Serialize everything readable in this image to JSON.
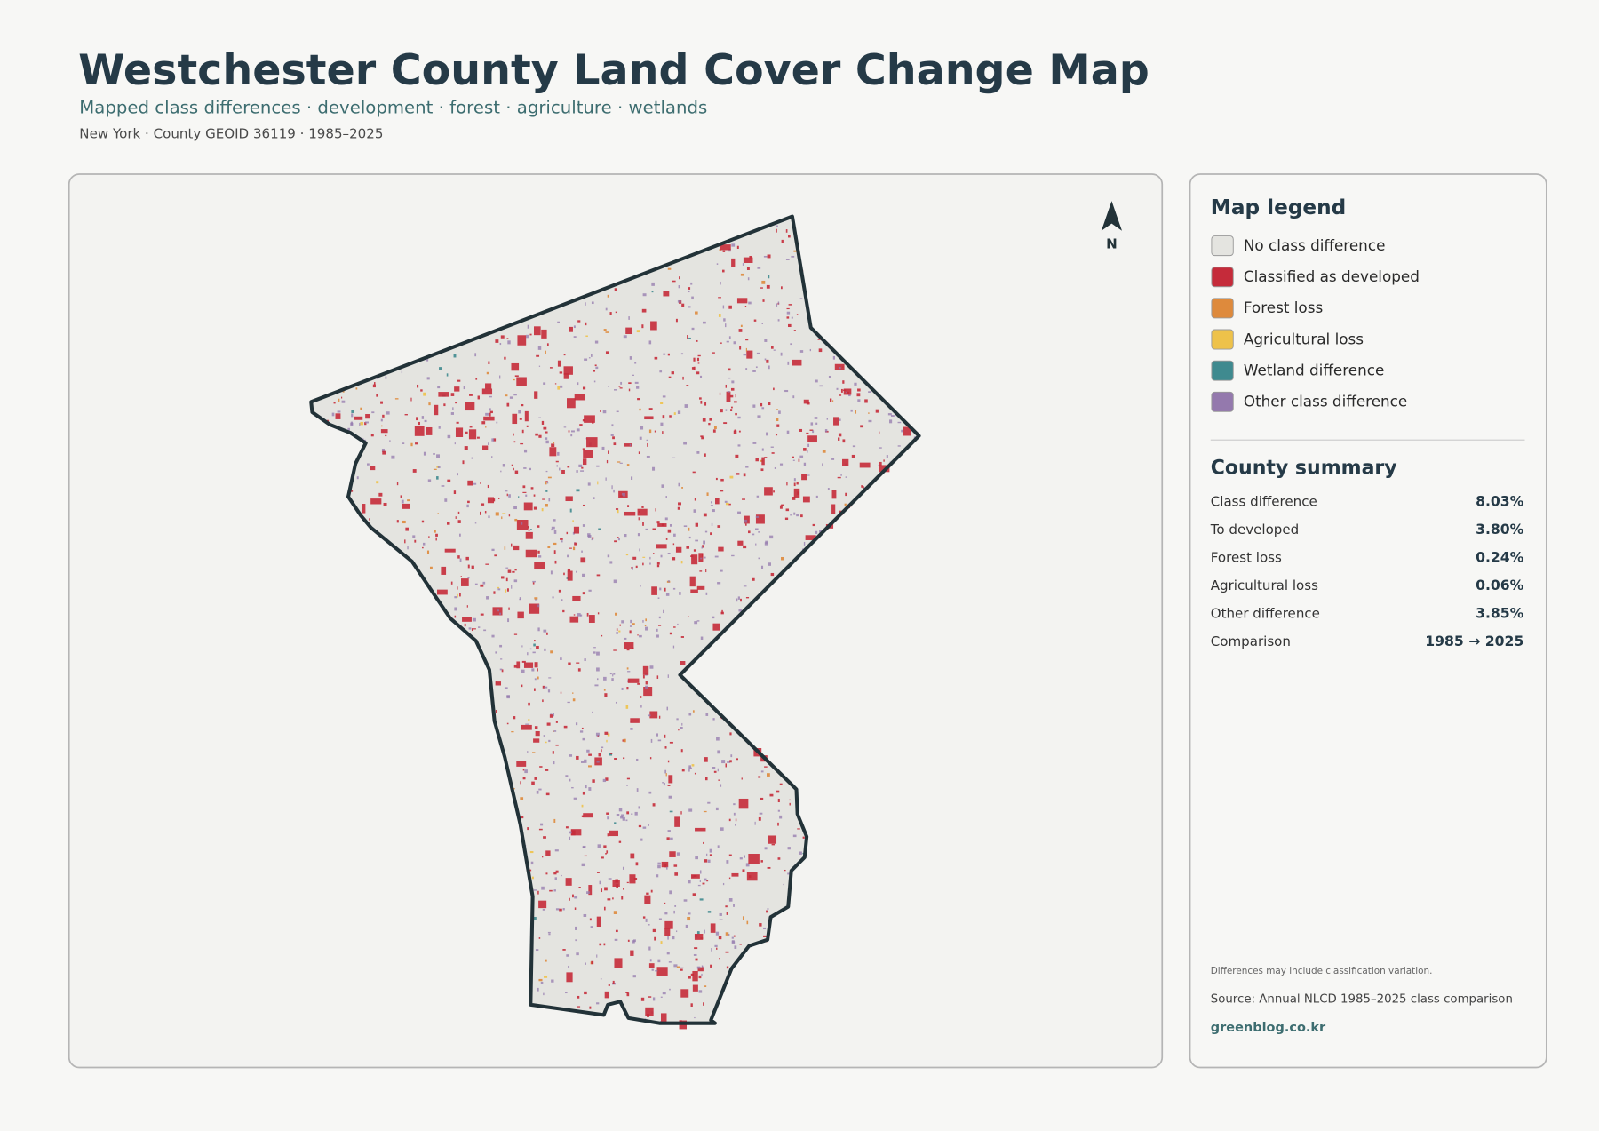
{
  "header": {
    "title": "Westchester County Land Cover Change Map",
    "subtitle": "Mapped class differences · development · forest · agriculture · wetlands",
    "meta": "New York · County GEOID 36119 · 1985–2025"
  },
  "map": {
    "north": "N"
  },
  "legend": {
    "title": "Map legend",
    "items": [
      {
        "label": "No class difference",
        "color": "#e4e4e0"
      },
      {
        "label": "Classified as developed",
        "color": "#c52b3a"
      },
      {
        "label": "Forest loss",
        "color": "#de8a3c"
      },
      {
        "label": "Agricultural loss",
        "color": "#eec24a"
      },
      {
        "label": "Wetland difference",
        "color": "#3f8a8f"
      },
      {
        "label": "Other class difference",
        "color": "#9479ad"
      }
    ]
  },
  "summary": {
    "title": "County summary",
    "rows": [
      {
        "label": "Class difference",
        "value": "8.03%"
      },
      {
        "label": "To developed",
        "value": "3.80%"
      },
      {
        "label": "Forest loss",
        "value": "0.24%"
      },
      {
        "label": "Agricultural loss",
        "value": "0.06%"
      },
      {
        "label": "Other difference",
        "value": "3.85%"
      },
      {
        "label": "Comparison",
        "value": "1985 → 2025"
      }
    ]
  },
  "footer": {
    "note": "Differences may include classification variation.",
    "source": "Source: Annual NLCD 1985–2025 class comparison",
    "site": "greenblog.co.kr"
  }
}
